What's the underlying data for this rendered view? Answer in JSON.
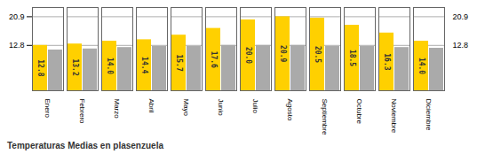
{
  "chart_data": {
    "type": "bar",
    "title": "Temperaturas Medias en plasenzuela",
    "categories": [
      "Enero",
      "Febrero",
      "Marzo",
      "Abril",
      "Mayo",
      "Junio",
      "Julio",
      "Agosto",
      "Septiembre",
      "Octubre",
      "Noviembre",
      "Diciembre"
    ],
    "series": [
      {
        "color": "#FFD000",
        "values": [
          12.8,
          13.2,
          14.0,
          14.4,
          15.7,
          17.6,
          20.0,
          20.9,
          20.5,
          18.5,
          16.3,
          14.0
        ],
        "value_labels": [
          "12.8",
          "13.2",
          "14.0",
          "14.4",
          "15.7",
          "17.6",
          "20.0",
          "20.9",
          "20.5",
          "18.5",
          "16.3",
          "14.0"
        ],
        "data_labels": true
      },
      {
        "color": "#AAAAAA",
        "values": [
          11.5,
          11.8,
          12.2,
          12.5,
          12.5,
          12.8,
          12.8,
          12.8,
          12.5,
          12.5,
          12.2,
          12.0
        ]
      }
    ],
    "ylim": [
      0,
      23.5
    ],
    "yticks": [
      12.8,
      20.9
    ],
    "grid": true
  }
}
